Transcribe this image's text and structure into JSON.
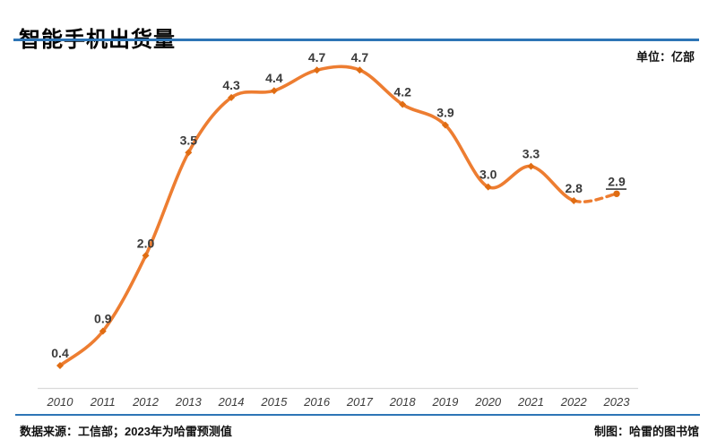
{
  "header": {
    "title": "智能手机出货量"
  },
  "chart": {
    "unit_label": "单位：亿部"
  },
  "footer": {
    "source": "数据来源：工信部；2023年为哈雷预测值",
    "credit": "制图：哈雷的图书馆"
  },
  "colors": {
    "background": "#FFFFFF",
    "line_orange": "#ED7D31",
    "marker_orange": "#E06C12",
    "divider_blue": "#2E75B6",
    "axis_gray": "#D9D9D9",
    "data_label": "#3A3A3A",
    "tick_label": "#3C3C3C"
  },
  "chart_data": {
    "type": "line",
    "title": "智能手机出货量",
    "unit": "亿部",
    "categories": [
      "2010",
      "2011",
      "2012",
      "2013",
      "2014",
      "2015",
      "2016",
      "2017",
      "2018",
      "2019",
      "2020",
      "2021",
      "2022",
      "2023"
    ],
    "values": [
      0.4,
      0.9,
      2.0,
      3.5,
      4.3,
      4.4,
      4.7,
      4.7,
      4.2,
      3.9,
      3.0,
      3.3,
      2.8,
      2.9
    ],
    "dash_start_index": 12,
    "forecast_index": 13,
    "forecast_note": "2023年为预测值（数据标签带下划线，线段为虚线）",
    "ylim": [
      0,
      5.0
    ],
    "grid": false,
    "legend": false,
    "smooth": true,
    "data_labels_shown": true
  }
}
